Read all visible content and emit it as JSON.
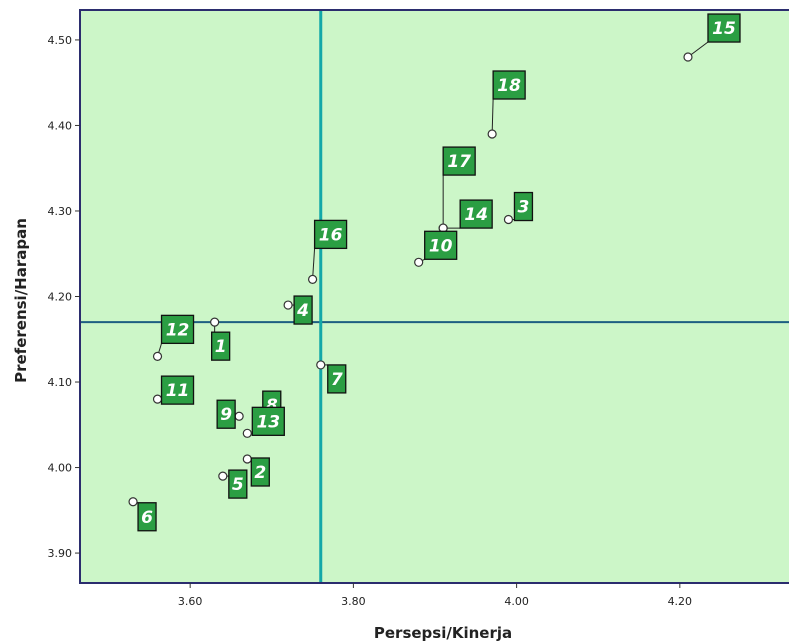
{
  "chart_data": {
    "type": "scatter",
    "xlabel": "Persepsi/Kinerja",
    "ylabel": "Preferensi/Harapan",
    "xlim": [
      3.465,
      4.335
    ],
    "ylim": [
      3.865,
      4.535
    ],
    "xticks": [
      "3.60",
      "3.80",
      "4.00",
      "4.20"
    ],
    "xtick_values": [
      3.6,
      3.8,
      4.0,
      4.2
    ],
    "yticks": [
      "3.90",
      "4.00",
      "4.10",
      "4.20",
      "4.30",
      "4.40",
      "4.50"
    ],
    "ytick_values": [
      3.9,
      4.0,
      4.1,
      4.2,
      4.3,
      4.4,
      4.5
    ],
    "reference_lines": {
      "x": 3.76,
      "y": 4.17
    },
    "grid": false,
    "colors": {
      "plot_background": "#ccf6c8",
      "reference_line_vertical": "#12a8a8",
      "reference_line_horizontal": "#1d5e82",
      "label_fill": "#2b9e43",
      "frame": "#2b2d6e"
    },
    "points": [
      {
        "label": "1",
        "x": 3.63,
        "y": 4.17
      },
      {
        "label": "2",
        "x": 3.67,
        "y": 4.01
      },
      {
        "label": "3",
        "x": 3.99,
        "y": 4.29
      },
      {
        "label": "4",
        "x": 3.72,
        "y": 4.19
      },
      {
        "label": "5",
        "x": 3.64,
        "y": 3.99
      },
      {
        "label": "6",
        "x": 3.53,
        "y": 3.96
      },
      {
        "label": "7",
        "x": 3.76,
        "y": 4.12
      },
      {
        "label": "8",
        "x": 3.7,
        "y": 4.08
      },
      {
        "label": "9",
        "x": 3.66,
        "y": 4.06
      },
      {
        "label": "10",
        "x": 3.88,
        "y": 4.24
      },
      {
        "label": "11",
        "x": 3.56,
        "y": 4.08
      },
      {
        "label": "12",
        "x": 3.56,
        "y": 4.13
      },
      {
        "label": "13",
        "x": 3.67,
        "y": 4.04
      },
      {
        "label": "14",
        "x": 3.91,
        "y": 4.28
      },
      {
        "label": "15",
        "x": 4.21,
        "y": 4.48
      },
      {
        "label": "16",
        "x": 3.75,
        "y": 4.22
      },
      {
        "label": "17",
        "x": 3.91,
        "y": 4.28
      },
      {
        "label": "18",
        "x": 3.97,
        "y": 4.39
      }
    ]
  }
}
